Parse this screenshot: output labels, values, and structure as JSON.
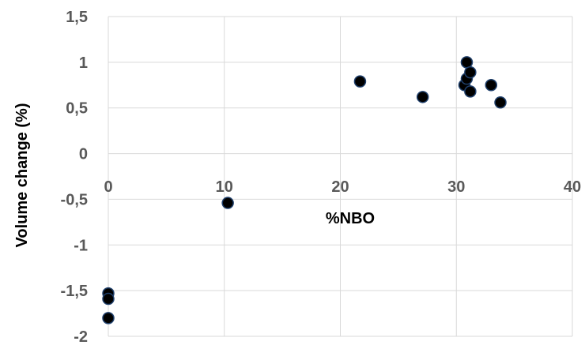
{
  "chart_data": {
    "type": "scatter",
    "title": "",
    "xlabel": "%NBO",
    "ylabel": "Volume change (%)",
    "xlim": [
      0,
      40
    ],
    "ylim": [
      -2,
      1.5
    ],
    "x_ticks": [
      "0",
      "10",
      "20",
      "30",
      "40"
    ],
    "y_ticks": [
      "1,5",
      "1",
      "0,5",
      "0",
      "-0,5",
      "-1",
      "-1,5",
      "-2"
    ],
    "grid": true,
    "legend": "none",
    "marker_color": "#000000",
    "marker_edge_color": "#1f3f6b",
    "series": [
      {
        "points": [
          {
            "x": 0,
            "y": -1.53
          },
          {
            "x": 0,
            "y": -1.59
          },
          {
            "x": 0,
            "y": -1.8
          },
          {
            "x": 10.3,
            "y": -0.54
          },
          {
            "x": 21.7,
            "y": 0.79
          },
          {
            "x": 27.1,
            "y": 0.62
          },
          {
            "x": 30.7,
            "y": 0.75
          },
          {
            "x": 30.9,
            "y": 1.0
          },
          {
            "x": 30.9,
            "y": 0.82
          },
          {
            "x": 31.2,
            "y": 0.89
          },
          {
            "x": 31.2,
            "y": 0.68
          },
          {
            "x": 33.0,
            "y": 0.75
          },
          {
            "x": 33.8,
            "y": 0.56
          }
        ]
      }
    ]
  }
}
